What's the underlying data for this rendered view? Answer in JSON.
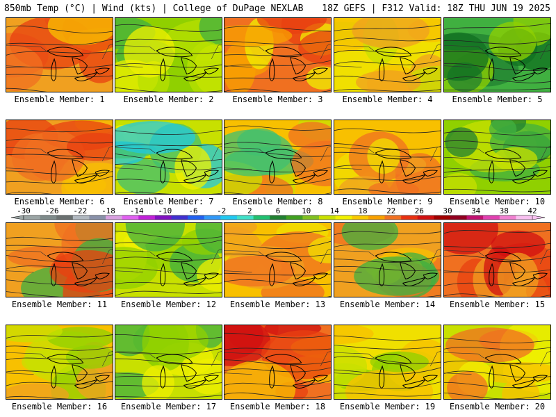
{
  "header": {
    "left": "850mb Temp (°C) | Wind (kts) | College of DuPage NEXLAB",
    "right": "18Z GEFS | F312 Valid: 18Z THU JUN 19 2025"
  },
  "colorbar": {
    "labels": [
      "-30",
      "-26",
      "-22",
      "-18",
      "-14",
      "-10",
      "-6",
      "-2",
      "2",
      "6",
      "10",
      "14",
      "18",
      "22",
      "26",
      "30",
      "34",
      "38",
      "42"
    ],
    "colors": [
      "#9aa4a4",
      "#7e8a8a",
      "#6a7070",
      "#b0b8c0",
      "#8890a8",
      "#d8a0e0",
      "#e060f0",
      "#c020d8",
      "#8010c0",
      "#4030d0",
      "#2060f0",
      "#3098f8",
      "#20c8f0",
      "#40e0c8",
      "#20c070",
      "#208030",
      "#40a020",
      "#80c020",
      "#c8e000",
      "#f0f000",
      "#f8c800",
      "#f8a000",
      "#f07020",
      "#e83010",
      "#d01010",
      "#a00000",
      "#900020",
      "#c01070",
      "#e040b0",
      "#f080d0",
      "#f8c0f0"
    ]
  },
  "panels": [
    {
      "label": "Ensemble Member: 1",
      "palette": [
        "#f0a020",
        "#f07020",
        "#e84010",
        "#f8c000"
      ]
    },
    {
      "label": "Ensemble Member: 2",
      "palette": [
        "#90d000",
        "#b8e000",
        "#40b040",
        "#f0f000"
      ]
    },
    {
      "label": "Ensemble Member: 3",
      "palette": [
        "#f07020",
        "#e84010",
        "#f8a000",
        "#f0f000"
      ]
    },
    {
      "label": "Ensemble Member: 4",
      "palette": [
        "#f0e000",
        "#f8c000",
        "#c8e000",
        "#f0a020"
      ]
    },
    {
      "label": "Ensemble Member: 5",
      "palette": [
        "#40b040",
        "#208030",
        "#90d000",
        "#107020"
      ]
    },
    {
      "label": "Ensemble Member: 6",
      "palette": [
        "#f0a020",
        "#f07020",
        "#e84010",
        "#f8c000"
      ]
    },
    {
      "label": "Ensemble Member: 7",
      "palette": [
        "#c8e000",
        "#f0f000",
        "#40c070",
        "#20c8e0"
      ]
    },
    {
      "label": "Ensemble Member: 8",
      "palette": [
        "#f8c000",
        "#c8e000",
        "#40c070",
        "#f07020"
      ]
    },
    {
      "label": "Ensemble Member: 9",
      "palette": [
        "#f8c000",
        "#f0a020",
        "#f0e000",
        "#f07020"
      ]
    },
    {
      "label": "Ensemble Member: 10",
      "palette": [
        "#90d000",
        "#40b040",
        "#c8e000",
        "#208030"
      ]
    },
    {
      "label": "Ensemble Member: 11",
      "palette": [
        "#f0a020",
        "#f07020",
        "#40b040",
        "#e84010"
      ]
    },
    {
      "label": "Ensemble Member: 12",
      "palette": [
        "#c8e000",
        "#f0f000",
        "#90d000",
        "#40b040"
      ]
    },
    {
      "label": "Ensemble Member: 13",
      "palette": [
        "#f8c000",
        "#f0a020",
        "#f07020",
        "#f0e000"
      ]
    },
    {
      "label": "Ensemble Member: 14",
      "palette": [
        "#f0a020",
        "#f07020",
        "#f8c000",
        "#40b040"
      ]
    },
    {
      "label": "Ensemble Member: 15",
      "palette": [
        "#f07020",
        "#e84010",
        "#f0a020",
        "#d01010"
      ]
    },
    {
      "label": "Ensemble Member: 16",
      "palette": [
        "#f8c000",
        "#c8e000",
        "#f0a020",
        "#90d000"
      ]
    },
    {
      "label": "Ensemble Member: 17",
      "palette": [
        "#c8e000",
        "#90d000",
        "#40b040",
        "#f0f000"
      ]
    },
    {
      "label": "Ensemble Member: 18",
      "palette": [
        "#f07020",
        "#e84010",
        "#f8c000",
        "#d01010"
      ]
    },
    {
      "label": "Ensemble Member: 19",
      "palette": [
        "#f0e000",
        "#c8e000",
        "#f8c000",
        "#90d000"
      ]
    },
    {
      "label": "Ensemble Member: 20",
      "palette": [
        "#c8e000",
        "#f0f000",
        "#f8c000",
        "#f07020"
      ]
    }
  ]
}
